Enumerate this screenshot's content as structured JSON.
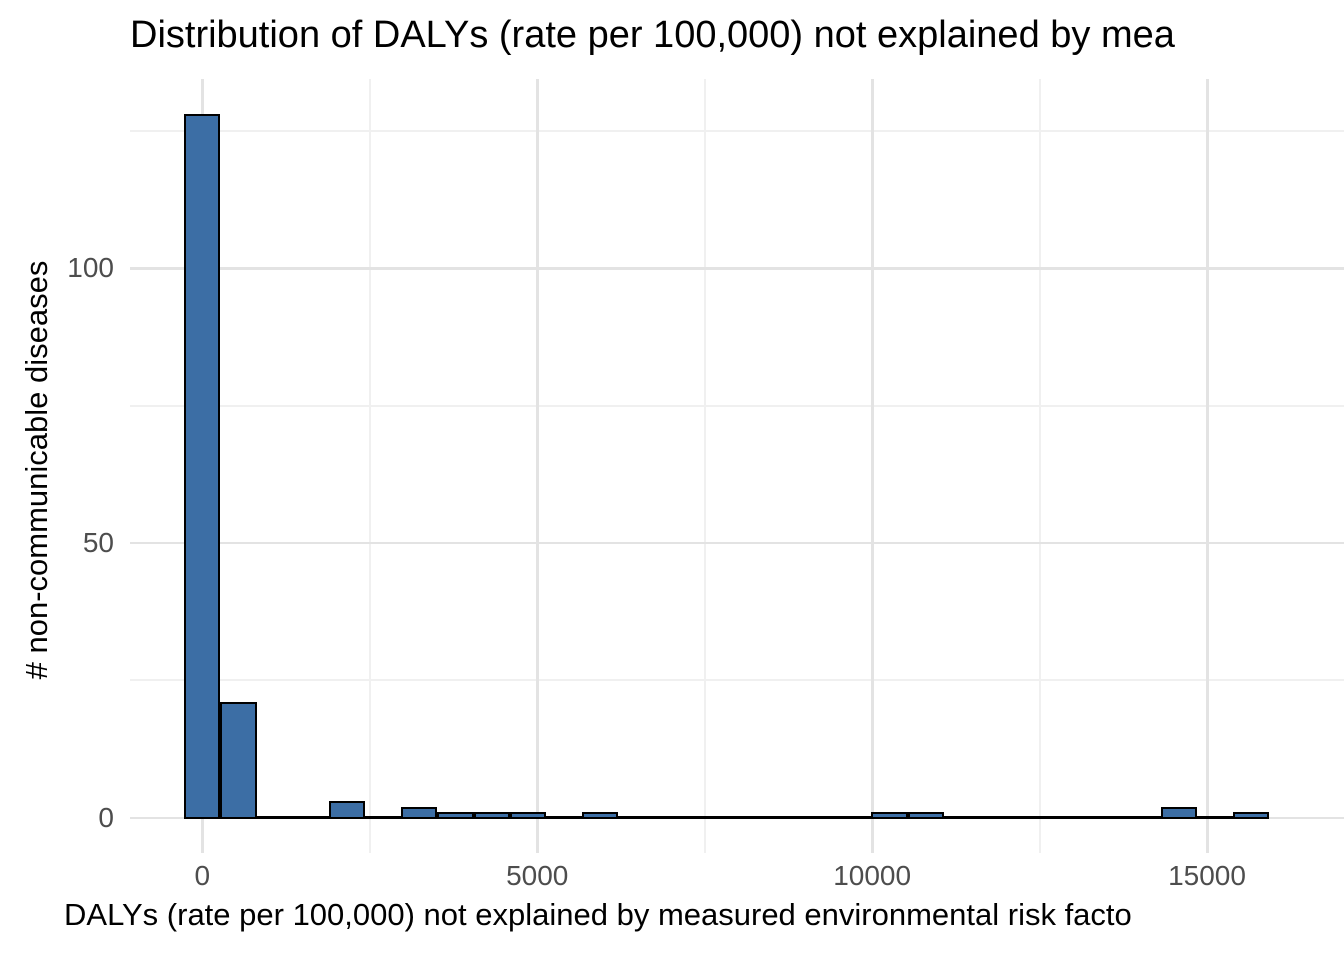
{
  "chart_data": {
    "type": "bar",
    "subtype": "histogram",
    "title": "Distribution of DALYs (rate per 100,000) not explained by mea",
    "xlabel": "DALYs (rate per 100,000) not explained by measured environmental risk facto",
    "ylabel": "# non-communicable diseases",
    "bin_width": 540,
    "bins": [
      {
        "center": 0,
        "count": 128
      },
      {
        "center": 540,
        "count": 21
      },
      {
        "center": 2160,
        "count": 3
      },
      {
        "center": 3240,
        "count": 2
      },
      {
        "center": 3780,
        "count": 1
      },
      {
        "center": 4320,
        "count": 1
      },
      {
        "center": 4860,
        "count": 1
      },
      {
        "center": 5940,
        "count": 1
      },
      {
        "center": 10260,
        "count": 1
      },
      {
        "center": 10800,
        "count": 1
      },
      {
        "center": 14580,
        "count": 2
      },
      {
        "center": 15660,
        "count": 1
      }
    ],
    "data_range": [
      -270,
      15930
    ],
    "x_ticks": [
      {
        "value": 0,
        "label": "0"
      },
      {
        "value": 5000,
        "label": "5000"
      },
      {
        "value": 10000,
        "label": "10000"
      },
      {
        "value": 15000,
        "label": "15000"
      }
    ],
    "x_minor_gridlines": [
      2500,
      7500,
      12500
    ],
    "y_ticks": [
      {
        "value": 0,
        "label": "0"
      },
      {
        "value": 50,
        "label": "50"
      },
      {
        "value": 100,
        "label": "100"
      }
    ],
    "y_minor_gridlines": [
      25,
      75,
      125
    ],
    "xlim": [
      -1080,
      17045
    ],
    "ylim": [
      -6.4,
      134.4
    ],
    "grid": true,
    "legend": "none",
    "styles": {
      "bar_fill": "#3C6EA5",
      "bar_border": "#000000",
      "baseline_color": "#000000",
      "grid_major": "#E3E3E3",
      "grid_minor": "#F0F0F0",
      "tick_label_color": "#4D4D4D",
      "text_color": "#000000",
      "background": "#FFFFFF"
    }
  }
}
